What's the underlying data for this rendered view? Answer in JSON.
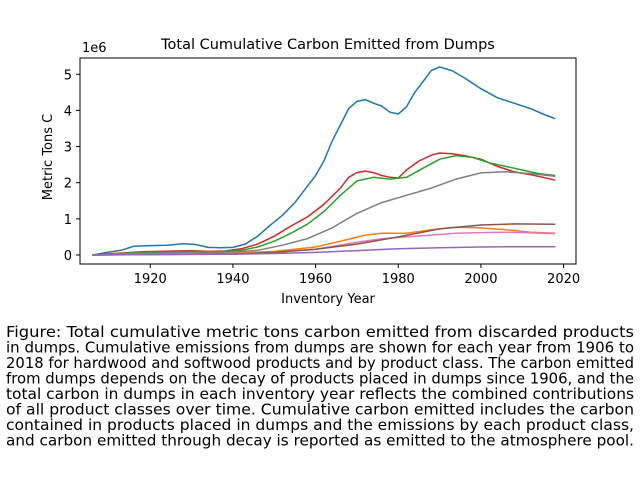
{
  "chart_data": {
    "type": "line",
    "title": "Total Cumulative Carbon Emitted from Dumps",
    "xlabel": "Inventory Year",
    "ylabel": "Metric Tons C",
    "y_scale_label": "1e6",
    "xlim": [
      1903,
      2023
    ],
    "ylim": [
      -0.25,
      5.45
    ],
    "xticks": [
      1920,
      1940,
      1960,
      1980,
      2000,
      2020
    ],
    "yticks": [
      0,
      1,
      2,
      3,
      4,
      5
    ],
    "grid": false,
    "legend": "none",
    "series": [
      {
        "color": "#1f77b4",
        "points": [
          [
            1906,
            0
          ],
          [
            1910,
            0.08
          ],
          [
            1913,
            0.13
          ],
          [
            1916,
            0.24
          ],
          [
            1920,
            0.26
          ],
          [
            1924,
            0.27
          ],
          [
            1928,
            0.31
          ],
          [
            1931,
            0.29
          ],
          [
            1934,
            0.21
          ],
          [
            1937,
            0.2
          ],
          [
            1940,
            0.21
          ],
          [
            1943,
            0.3
          ],
          [
            1946,
            0.52
          ],
          [
            1949,
            0.82
          ],
          [
            1952,
            1.1
          ],
          [
            1955,
            1.45
          ],
          [
            1958,
            1.9
          ],
          [
            1960,
            2.2
          ],
          [
            1962,
            2.6
          ],
          [
            1964,
            3.15
          ],
          [
            1966,
            3.6
          ],
          [
            1968,
            4.05
          ],
          [
            1970,
            4.25
          ],
          [
            1972,
            4.3
          ],
          [
            1974,
            4.2
          ],
          [
            1976,
            4.12
          ],
          [
            1978,
            3.95
          ],
          [
            1980,
            3.9
          ],
          [
            1982,
            4.1
          ],
          [
            1984,
            4.5
          ],
          [
            1986,
            4.8
          ],
          [
            1988,
            5.1
          ],
          [
            1990,
            5.2
          ],
          [
            1993,
            5.1
          ],
          [
            1996,
            4.9
          ],
          [
            2000,
            4.6
          ],
          [
            2004,
            4.35
          ],
          [
            2008,
            4.2
          ],
          [
            2012,
            4.05
          ],
          [
            2015,
            3.9
          ],
          [
            2018,
            3.77
          ]
        ]
      },
      {
        "color": "#d62728",
        "points": [
          [
            1906,
            0
          ],
          [
            1910,
            0.03
          ],
          [
            1914,
            0.06
          ],
          [
            1918,
            0.09
          ],
          [
            1922,
            0.1
          ],
          [
            1926,
            0.11
          ],
          [
            1930,
            0.12
          ],
          [
            1934,
            0.1
          ],
          [
            1938,
            0.11
          ],
          [
            1942,
            0.17
          ],
          [
            1946,
            0.3
          ],
          [
            1950,
            0.52
          ],
          [
            1954,
            0.8
          ],
          [
            1958,
            1.05
          ],
          [
            1962,
            1.4
          ],
          [
            1966,
            1.85
          ],
          [
            1968,
            2.15
          ],
          [
            1970,
            2.28
          ],
          [
            1972,
            2.32
          ],
          [
            1974,
            2.28
          ],
          [
            1976,
            2.2
          ],
          [
            1978,
            2.15
          ],
          [
            1980,
            2.13
          ],
          [
            1982,
            2.35
          ],
          [
            1985,
            2.6
          ],
          [
            1988,
            2.76
          ],
          [
            1990,
            2.82
          ],
          [
            1993,
            2.8
          ],
          [
            1996,
            2.75
          ],
          [
            2000,
            2.65
          ],
          [
            2004,
            2.45
          ],
          [
            2008,
            2.3
          ],
          [
            2012,
            2.22
          ],
          [
            2015,
            2.15
          ],
          [
            2018,
            2.07
          ]
        ]
      },
      {
        "color": "#2ca02c",
        "points": [
          [
            1906,
            0
          ],
          [
            1910,
            0.02
          ],
          [
            1914,
            0.05
          ],
          [
            1918,
            0.07
          ],
          [
            1922,
            0.08
          ],
          [
            1926,
            0.09
          ],
          [
            1930,
            0.1
          ],
          [
            1934,
            0.09
          ],
          [
            1938,
            0.1
          ],
          [
            1942,
            0.13
          ],
          [
            1946,
            0.22
          ],
          [
            1950,
            0.38
          ],
          [
            1954,
            0.6
          ],
          [
            1958,
            0.85
          ],
          [
            1962,
            1.2
          ],
          [
            1966,
            1.65
          ],
          [
            1970,
            2.05
          ],
          [
            1974,
            2.15
          ],
          [
            1978,
            2.1
          ],
          [
            1982,
            2.15
          ],
          [
            1986,
            2.4
          ],
          [
            1990,
            2.65
          ],
          [
            1994,
            2.75
          ],
          [
            1998,
            2.7
          ],
          [
            2002,
            2.55
          ],
          [
            2006,
            2.45
          ],
          [
            2010,
            2.35
          ],
          [
            2014,
            2.25
          ],
          [
            2018,
            2.2
          ]
        ]
      },
      {
        "color": "#7f7f7f",
        "points": [
          [
            1906,
            0
          ],
          [
            1912,
            0.02
          ],
          [
            1920,
            0.05
          ],
          [
            1930,
            0.07
          ],
          [
            1940,
            0.08
          ],
          [
            1946,
            0.13
          ],
          [
            1952,
            0.27
          ],
          [
            1958,
            0.45
          ],
          [
            1964,
            0.75
          ],
          [
            1970,
            1.15
          ],
          [
            1976,
            1.45
          ],
          [
            1982,
            1.65
          ],
          [
            1988,
            1.85
          ],
          [
            1994,
            2.1
          ],
          [
            2000,
            2.27
          ],
          [
            2006,
            2.3
          ],
          [
            2012,
            2.25
          ],
          [
            2018,
            2.18
          ]
        ]
      },
      {
        "color": "#ff7f0e",
        "points": [
          [
            1906,
            0
          ],
          [
            1920,
            0.02
          ],
          [
            1940,
            0.04
          ],
          [
            1950,
            0.1
          ],
          [
            1960,
            0.22
          ],
          [
            1966,
            0.38
          ],
          [
            1972,
            0.55
          ],
          [
            1976,
            0.6
          ],
          [
            1982,
            0.6
          ],
          [
            1988,
            0.7
          ],
          [
            1994,
            0.77
          ],
          [
            2000,
            0.75
          ],
          [
            2006,
            0.7
          ],
          [
            2012,
            0.63
          ],
          [
            2018,
            0.6
          ]
        ]
      },
      {
        "color": "#e377c2",
        "points": [
          [
            1906,
            0
          ],
          [
            1920,
            0.02
          ],
          [
            1940,
            0.03
          ],
          [
            1950,
            0.07
          ],
          [
            1960,
            0.16
          ],
          [
            1970,
            0.35
          ],
          [
            1976,
            0.45
          ],
          [
            1982,
            0.5
          ],
          [
            1988,
            0.55
          ],
          [
            1994,
            0.6
          ],
          [
            2000,
            0.62
          ],
          [
            2006,
            0.63
          ],
          [
            2012,
            0.61
          ],
          [
            2018,
            0.59
          ]
        ]
      },
      {
        "color": "#8c564b",
        "points": [
          [
            1906,
            0
          ],
          [
            1920,
            0.01
          ],
          [
            1940,
            0.03
          ],
          [
            1950,
            0.07
          ],
          [
            1960,
            0.16
          ],
          [
            1970,
            0.3
          ],
          [
            1980,
            0.5
          ],
          [
            1990,
            0.72
          ],
          [
            2000,
            0.83
          ],
          [
            2008,
            0.86
          ],
          [
            2018,
            0.85
          ]
        ]
      },
      {
        "color": "#9467bd",
        "points": [
          [
            1906,
            0
          ],
          [
            1920,
            0.01
          ],
          [
            1940,
            0.02
          ],
          [
            1950,
            0.04
          ],
          [
            1960,
            0.07
          ],
          [
            1970,
            0.12
          ],
          [
            1980,
            0.17
          ],
          [
            1990,
            0.2
          ],
          [
            2000,
            0.22
          ],
          [
            2010,
            0.23
          ],
          [
            2018,
            0.23
          ]
        ]
      }
    ]
  },
  "caption": {
    "lines": [
      "Figure: Total cumulative metric tons carbon emitted from discarded products",
      "in dumps. Cumulative emissions from dumps are shown for each year from 1906 to",
      "2018 for hardwood and softwood products and by product class. The carbon emitted",
      "from dumps depends on the decay of products placed in dumps since 1906, and the",
      "total carbon in dumps in each inventory year reflects the combined contributions",
      "of all product classes over time. Cumulative carbon emitted includes the carbon",
      "contained in products placed in dumps and the emissions by each product class,",
      "and carbon emitted through decay is reported as emitted to the atmosphere pool."
    ]
  }
}
